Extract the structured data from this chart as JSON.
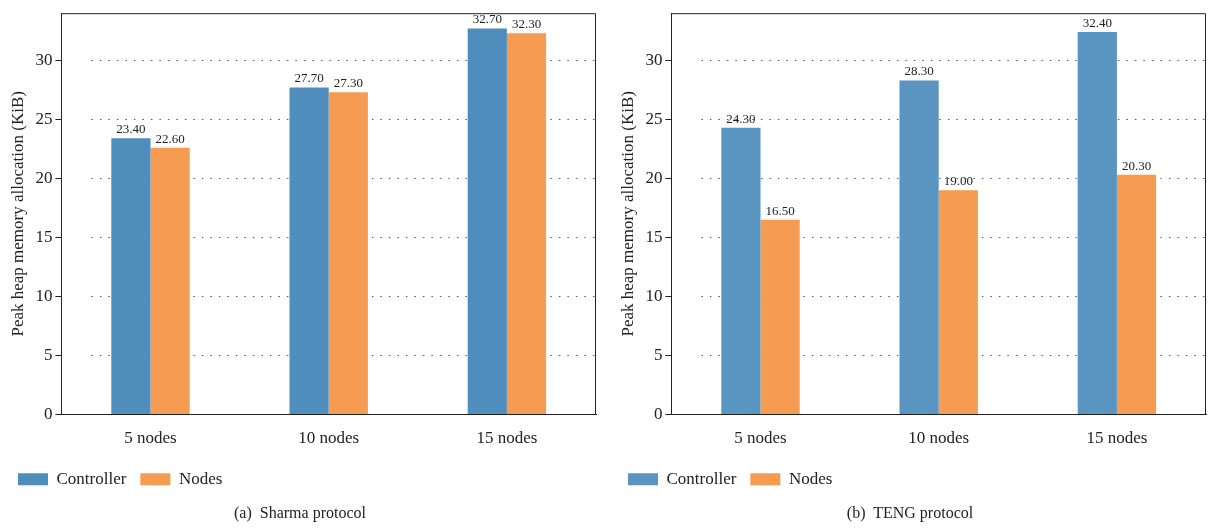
{
  "chart_data": [
    {
      "type": "bar",
      "title": "(a)  Sharma protocol",
      "ylabel": "Peak heap memory allocation (KiB)",
      "categories": [
        "5 nodes",
        "10 nodes",
        "15 nodes"
      ],
      "series": [
        {
          "name": "Controller",
          "color": "#4f8dbd",
          "values": [
            23.4,
            27.7,
            32.7
          ],
          "value_labels": [
            "23.40",
            "27.70",
            "32.70"
          ]
        },
        {
          "name": "Nodes",
          "color": "#f59c52",
          "values": [
            22.6,
            27.3,
            32.3
          ],
          "value_labels": [
            "22.60",
            "27.30",
            "32.30"
          ]
        }
      ],
      "ylim": [
        0,
        34
      ],
      "yticks": [
        0,
        5,
        10,
        15,
        20,
        25,
        30
      ],
      "grid": "y",
      "legend": "bottom left"
    },
    {
      "type": "bar",
      "title": "(b)  TENG protocol",
      "ylabel": "Peak heap memory allocation (KiB)",
      "categories": [
        "5 nodes",
        "10 nodes",
        "15 nodes"
      ],
      "series": [
        {
          "name": "Controller",
          "color": "#5a94c0",
          "values": [
            24.3,
            28.3,
            32.4
          ],
          "value_labels": [
            "24.30",
            "28.30",
            "32.40"
          ]
        },
        {
          "name": "Nodes",
          "color": "#f59c52",
          "values": [
            16.5,
            19.0,
            20.3
          ],
          "value_labels": [
            "16.50",
            "19.00",
            "20.30"
          ]
        }
      ],
      "ylim": [
        0,
        34
      ],
      "yticks": [
        0,
        5,
        10,
        15,
        20,
        25,
        30
      ],
      "grid": "y",
      "legend": "bottom left"
    }
  ]
}
